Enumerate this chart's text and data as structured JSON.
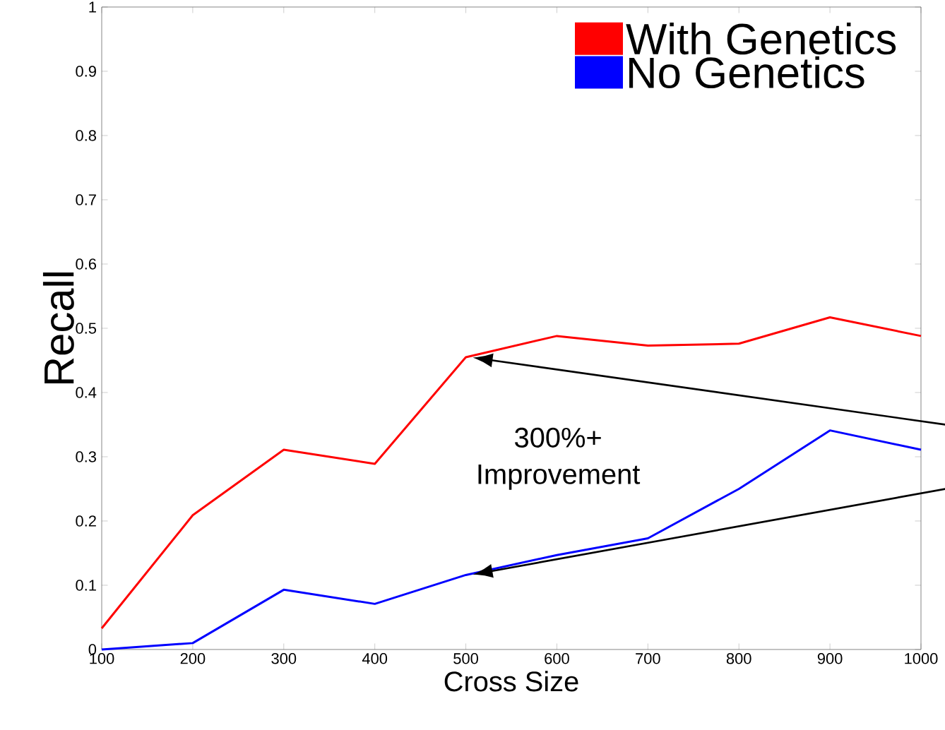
{
  "chart_data": {
    "type": "line",
    "xlabel": "Cross Size",
    "ylabel": "Recall",
    "x": [
      100,
      200,
      300,
      400,
      500,
      600,
      700,
      800,
      900,
      1000
    ],
    "series": [
      {
        "name": "With Genetics",
        "color": "#ff0000",
        "values": [
          0.033,
          0.209,
          0.311,
          0.289,
          0.455,
          0.488,
          0.473,
          0.476,
          0.517,
          0.488
        ]
      },
      {
        "name": "No Genetics",
        "color": "#0000ff",
        "values": [
          0.0,
          0.01,
          0.093,
          0.071,
          0.116,
          0.147,
          0.173,
          0.25,
          0.341,
          0.311
        ]
      }
    ],
    "xlim": [
      100,
      1000
    ],
    "ylim": [
      0,
      1
    ],
    "xticks": [
      100,
      200,
      300,
      400,
      500,
      600,
      700,
      800,
      900,
      1000
    ],
    "yticks": [
      0,
      0.1,
      0.2,
      0.3,
      0.4,
      0.5,
      0.6,
      0.7,
      0.8,
      0.9,
      1
    ],
    "annotations": [
      "300%+ Improvement"
    ],
    "legend": "top right",
    "grid": false,
    "marker": "none",
    "line_style": "solid"
  }
}
